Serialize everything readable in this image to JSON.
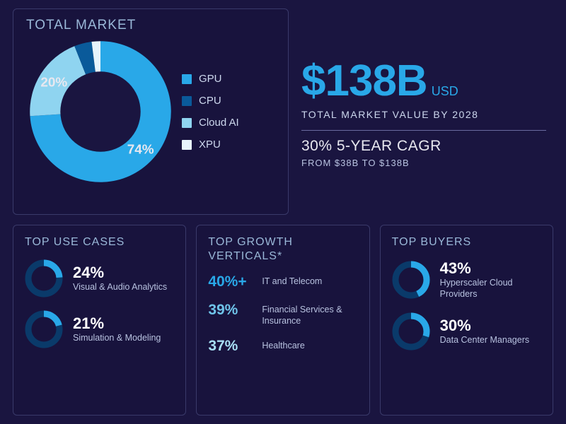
{
  "colors": {
    "background": "#1a1540",
    "panel_border": "#3a3a6a",
    "title_text": "#9ab8d8",
    "body_text": "#cdd8ee",
    "accent_bright": "#29a8e8",
    "accent_light": "#8fd4f0",
    "accent_pale": "#c5e8f7",
    "accent_deep": "#0a5a9a",
    "white": "#ffffff"
  },
  "top": {
    "title": "TOTAL MARKET",
    "donut": {
      "type": "donut",
      "inner_radius_ratio": 0.55,
      "slices": [
        {
          "label": "GPU",
          "value": 74,
          "color": "#29a8e8",
          "show_label": true
        },
        {
          "label": "Cloud AI",
          "value": 20,
          "color": "#8fd4f0",
          "show_label": true
        },
        {
          "label": "CPU",
          "value": 4,
          "color": "#0a5a9a",
          "show_label": false
        },
        {
          "label": "XPU",
          "value": 2,
          "color": "#e8f4fc",
          "show_label": false
        }
      ],
      "label_fontsize": 18
    },
    "legend": [
      {
        "label": "GPU",
        "color": "#29a8e8"
      },
      {
        "label": "CPU",
        "color": "#0a5a9a"
      },
      {
        "label": "Cloud AI",
        "color": "#8fd4f0"
      },
      {
        "label": "XPU",
        "color": "#e8f4fc"
      }
    ],
    "headline": {
      "value": "$138B",
      "unit": "USD",
      "value_color": "#29a8e8",
      "value_fontsize": 62,
      "subhead": "TOTAL MARKET VALUE BY 2028",
      "cagr": "30% 5-YEAR CAGR",
      "cagr_sub": "FROM $38B TO $138B"
    }
  },
  "use_cases": {
    "title": "TOP USE CASES",
    "ring_track_color": "#0a3a6a",
    "ring_fill_color": "#29a8e8",
    "ring_stroke_width": 9,
    "items": [
      {
        "pct": 24,
        "pct_label": "24%",
        "label": "Visual & Audio Analytics"
      },
      {
        "pct": 21,
        "pct_label": "21%",
        "label": "Simulation & Modeling"
      }
    ]
  },
  "growth": {
    "title": "TOP GROWTH VERTICALS*",
    "items": [
      {
        "pct_label": "40%+",
        "color": "#29a8e8",
        "label": "IT and Telecom"
      },
      {
        "pct_label": "39%",
        "color": "#6fc4ea",
        "label": "Financial Services & Insurance"
      },
      {
        "pct_label": "37%",
        "color": "#a8dff5",
        "label": "Healthcare"
      }
    ]
  },
  "buyers": {
    "title": "TOP BUYERS",
    "ring_track_color": "#0a3a6a",
    "ring_fill_color": "#29a8e8",
    "ring_stroke_width": 9,
    "items": [
      {
        "pct": 43,
        "pct_label": "43%",
        "label": "Hyperscaler Cloud Providers"
      },
      {
        "pct": 30,
        "pct_label": "30%",
        "label": "Data Center Managers"
      }
    ]
  }
}
